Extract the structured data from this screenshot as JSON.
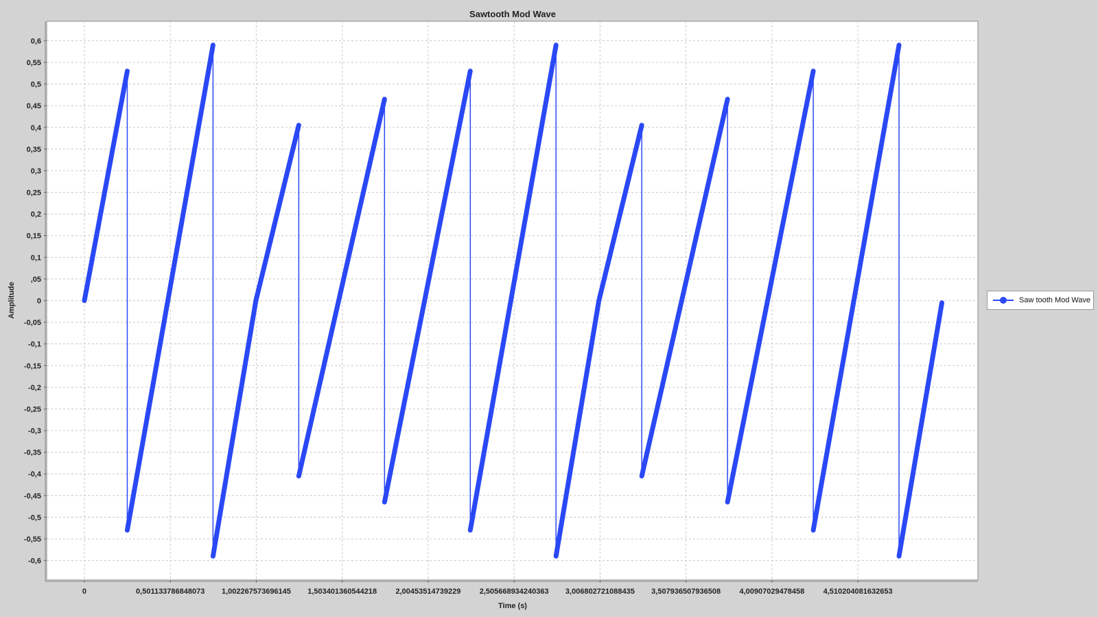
{
  "colors": {
    "series": "#2a48f5",
    "background": "#d3d3d3",
    "plot_bg": "#ffffff",
    "grid": "#c8c8c8"
  },
  "chart_data": {
    "type": "line",
    "title": "Sawtooth Mod Wave",
    "xlabel": "Time (s)",
    "ylabel": "Amplitude",
    "xlim": [
      -0.22,
      5.21
    ],
    "ylim": [
      -0.645,
      0.645
    ],
    "grid": true,
    "legend_position": "right",
    "x_ticks": [
      {
        "value": 0,
        "label": "0"
      },
      {
        "value": 0.501133786848073,
        "label": "0,501133786848073"
      },
      {
        "value": 1.002267573696145,
        "label": "1,002267573696145"
      },
      {
        "value": 1.503401360544218,
        "label": "1,503401360544218"
      },
      {
        "value": 2.00453514739229,
        "label": "2,00453514739229"
      },
      {
        "value": 2.505668934240363,
        "label": "2,505668934240363"
      },
      {
        "value": 3.006802721088435,
        "label": "3,006802721088435"
      },
      {
        "value": 3.507936507936508,
        "label": "3,507936507936508"
      },
      {
        "value": 4.00907029478458,
        "label": "4,00907029478458"
      },
      {
        "value": 4.510204081632653,
        "label": "4,510204081632653"
      }
    ],
    "y_ticks": [
      {
        "value": 0.6,
        "label": "0,6"
      },
      {
        "value": 0.55,
        "label": "0,55"
      },
      {
        "value": 0.5,
        "label": "0,5"
      },
      {
        "value": 0.45,
        "label": "0,45"
      },
      {
        "value": 0.4,
        "label": "0,4"
      },
      {
        "value": 0.35,
        "label": "0,35"
      },
      {
        "value": 0.3,
        "label": "0,3"
      },
      {
        "value": 0.25,
        "label": "0,25"
      },
      {
        "value": 0.2,
        "label": "0,2"
      },
      {
        "value": 0.15,
        "label": "0,15"
      },
      {
        "value": 0.1,
        "label": "0,1"
      },
      {
        "value": 0.05,
        "label": ",05"
      },
      {
        "value": 0,
        "label": "0"
      },
      {
        "value": -0.05,
        "label": "-0,05"
      },
      {
        "value": -0.1,
        "label": "-0,1"
      },
      {
        "value": -0.15,
        "label": "-0,15"
      },
      {
        "value": -0.2,
        "label": "-0,2"
      },
      {
        "value": -0.25,
        "label": "-0,25"
      },
      {
        "value": -0.3,
        "label": "-0,3"
      },
      {
        "value": -0.35,
        "label": "-0,35"
      },
      {
        "value": -0.4,
        "label": "-0,4"
      },
      {
        "value": -0.45,
        "label": "-0,45"
      },
      {
        "value": -0.5,
        "label": "-0,5"
      },
      {
        "value": -0.55,
        "label": "-0,55"
      },
      {
        "value": -0.6,
        "label": "-0,6"
      }
    ],
    "series": [
      {
        "name": "Saw tooth Mod Wave",
        "segments": [
          [
            [
              0,
              0
            ],
            [
              0.25,
              0.53
            ]
          ],
          [
            [
              0.25,
              -0.53
            ],
            [
              0.75,
              0.59
            ]
          ],
          [
            [
              0.75,
              -0.59
            ],
            [
              1.0,
              0.0
            ],
            [
              1.25,
              0.405
            ]
          ],
          [
            [
              1.25,
              -0.405
            ],
            [
              1.75,
              0.465
            ]
          ],
          [
            [
              1.75,
              -0.465
            ],
            [
              2.25,
              0.53
            ]
          ],
          [
            [
              2.25,
              -0.53
            ],
            [
              2.75,
              0.59
            ]
          ],
          [
            [
              2.75,
              -0.59
            ],
            [
              3.0,
              0.0
            ],
            [
              3.25,
              0.405
            ]
          ],
          [
            [
              3.25,
              -0.405
            ],
            [
              3.75,
              0.465
            ]
          ],
          [
            [
              3.75,
              -0.465
            ],
            [
              4.25,
              0.53
            ]
          ],
          [
            [
              4.25,
              -0.53
            ],
            [
              4.75,
              0.59
            ]
          ],
          [
            [
              4.75,
              -0.59
            ],
            [
              5.0,
              -0.005
            ]
          ]
        ],
        "drops": [
          [
            0.25,
            0.53,
            -0.53
          ],
          [
            0.75,
            0.59,
            -0.59
          ],
          [
            1.25,
            0.405,
            -0.405
          ],
          [
            1.75,
            0.465,
            -0.465
          ],
          [
            2.25,
            0.53,
            -0.53
          ],
          [
            2.75,
            0.59,
            -0.59
          ],
          [
            3.25,
            0.405,
            -0.405
          ],
          [
            3.75,
            0.465,
            -0.465
          ],
          [
            4.25,
            0.53,
            -0.53
          ],
          [
            4.75,
            0.59,
            -0.59
          ]
        ]
      }
    ]
  },
  "legend": {
    "label": "Saw tooth Mod Wave"
  }
}
